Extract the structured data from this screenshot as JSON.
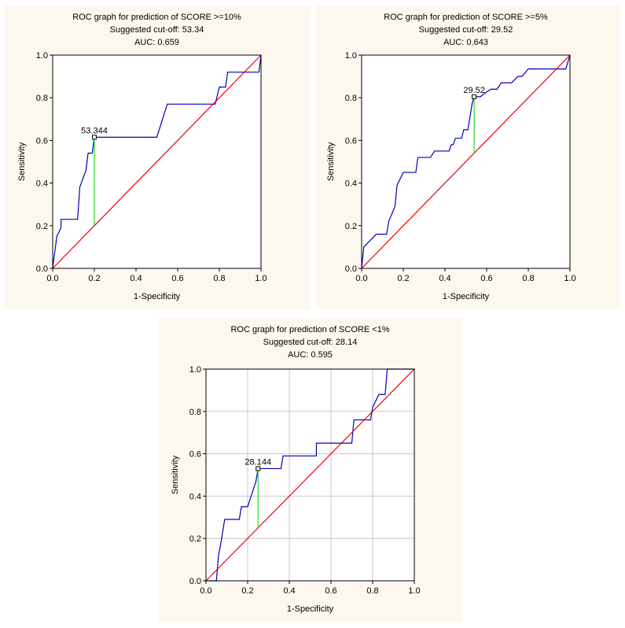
{
  "chart_data": [
    {
      "type": "line",
      "title": "ROC graph for prediction of SCORE >=10%",
      "subtitle_cutoff": "Suggested cut-off: 53.34",
      "subtitle_auc": "AUC: 0.659",
      "xlabel": "1-Specificity",
      "ylabel": "Sensitivity",
      "xlim": [
        0,
        1
      ],
      "ylim": [
        0,
        1
      ],
      "xticks": [
        "0.0",
        "0.2",
        "0.4",
        "0.6",
        "0.8",
        "1.0"
      ],
      "yticks": [
        "0.0",
        "0.2",
        "0.4",
        "0.6",
        "0.8",
        "1.0"
      ],
      "grid": false,
      "cutoff_label": "53.344",
      "cutoff_point": [
        0.2,
        0.615
      ],
      "series": [
        {
          "name": "ROC curve",
          "color": "#0000bb",
          "points": [
            [
              0,
              0
            ],
            [
              0.02,
              0.15
            ],
            [
              0.04,
              0.19
            ],
            [
              0.04,
              0.23
            ],
            [
              0.12,
              0.23
            ],
            [
              0.13,
              0.38
            ],
            [
              0.16,
              0.46
            ],
            [
              0.17,
              0.54
            ],
            [
              0.19,
              0.54
            ],
            [
              0.2,
              0.615
            ],
            [
              0.5,
              0.615
            ],
            [
              0.55,
              0.77
            ],
            [
              0.78,
              0.77
            ],
            [
              0.8,
              0.85
            ],
            [
              0.83,
              0.85
            ],
            [
              0.84,
              0.92
            ],
            [
              0.99,
              0.92
            ],
            [
              1,
              1
            ]
          ]
        },
        {
          "name": "Reference line",
          "color": "#ee0000",
          "points": [
            [
              0,
              0
            ],
            [
              1,
              1
            ]
          ]
        },
        {
          "name": "Cut-off marker",
          "color": "#22dd22",
          "points": [
            [
              0.2,
              0.2
            ],
            [
              0.2,
              0.615
            ]
          ]
        }
      ]
    },
    {
      "type": "line",
      "title": "ROC graph for prediction of SCORE >=5%",
      "subtitle_cutoff": "Suggested cut-off: 29.52",
      "subtitle_auc": "AUC: 0.643",
      "xlabel": "1-Specificity",
      "ylabel": "Sensitivity",
      "xlim": [
        0,
        1
      ],
      "ylim": [
        0,
        1
      ],
      "xticks": [
        "0.0",
        "0.2",
        "0.4",
        "0.6",
        "0.8",
        "1.0"
      ],
      "yticks": [
        "0.0",
        "0.2",
        "0.4",
        "0.6",
        "0.8",
        "1.0"
      ],
      "grid": false,
      "cutoff_label": "29.52",
      "cutoff_point": [
        0.54,
        0.805
      ],
      "series": [
        {
          "name": "ROC curve",
          "color": "#0000bb",
          "points": [
            [
              0,
              0
            ],
            [
              0.01,
              0.1
            ],
            [
              0.07,
              0.16
            ],
            [
              0.12,
              0.16
            ],
            [
              0.13,
              0.22
            ],
            [
              0.16,
              0.29
            ],
            [
              0.17,
              0.39
            ],
            [
              0.2,
              0.45
            ],
            [
              0.26,
              0.45
            ],
            [
              0.27,
              0.52
            ],
            [
              0.33,
              0.52
            ],
            [
              0.35,
              0.55
            ],
            [
              0.42,
              0.55
            ],
            [
              0.43,
              0.58
            ],
            [
              0.44,
              0.58
            ],
            [
              0.45,
              0.61
            ],
            [
              0.48,
              0.61
            ],
            [
              0.49,
              0.65
            ],
            [
              0.51,
              0.65
            ],
            [
              0.52,
              0.71
            ],
            [
              0.53,
              0.77
            ],
            [
              0.54,
              0.805
            ],
            [
              0.57,
              0.805
            ],
            [
              0.59,
              0.82
            ],
            [
              0.62,
              0.84
            ],
            [
              0.65,
              0.84
            ],
            [
              0.67,
              0.87
            ],
            [
              0.72,
              0.87
            ],
            [
              0.75,
              0.9
            ],
            [
              0.77,
              0.9
            ],
            [
              0.8,
              0.935
            ],
            [
              0.98,
              0.935
            ],
            [
              1,
              1
            ]
          ]
        },
        {
          "name": "Reference line",
          "color": "#ee0000",
          "points": [
            [
              0,
              0
            ],
            [
              1,
              1
            ]
          ]
        },
        {
          "name": "Cut-off marker",
          "color": "#22dd22",
          "points": [
            [
              0.54,
              0.54
            ],
            [
              0.54,
              0.805
            ]
          ]
        }
      ]
    },
    {
      "type": "line",
      "title": "ROC graph for prediction of SCORE <1%",
      "subtitle_cutoff": "Suggested cut-off: 28.14",
      "subtitle_auc": "AUC: 0.595",
      "xlabel": "1-Specificity",
      "ylabel": "Sensitivity",
      "xlim": [
        0,
        1
      ],
      "ylim": [
        0,
        1
      ],
      "xticks": [
        "0.0",
        "0.2",
        "0.4",
        "0.6",
        "0.8",
        "1.0"
      ],
      "yticks": [
        "0.0",
        "0.2",
        "0.4",
        "0.6",
        "0.8",
        "1.0"
      ],
      "grid": true,
      "cutoff_label": "28.144",
      "cutoff_point": [
        0.25,
        0.53
      ],
      "series": [
        {
          "name": "ROC curve",
          "color": "#0000bb",
          "points": [
            [
              0,
              0
            ],
            [
              0.05,
              0
            ],
            [
              0.06,
              0.12
            ],
            [
              0.07,
              0.17
            ],
            [
              0.09,
              0.29
            ],
            [
              0.16,
              0.29
            ],
            [
              0.17,
              0.35
            ],
            [
              0.2,
              0.35
            ],
            [
              0.22,
              0.41
            ],
            [
              0.24,
              0.47
            ],
            [
              0.25,
              0.53
            ],
            [
              0.36,
              0.53
            ],
            [
              0.37,
              0.59
            ],
            [
              0.53,
              0.59
            ],
            [
              0.53,
              0.65
            ],
            [
              0.7,
              0.65
            ],
            [
              0.71,
              0.76
            ],
            [
              0.79,
              0.76
            ],
            [
              0.8,
              0.82
            ],
            [
              0.83,
              0.88
            ],
            [
              0.86,
              0.88
            ],
            [
              0.87,
              1
            ],
            [
              1,
              1
            ]
          ]
        },
        {
          "name": "Reference line",
          "color": "#ee0000",
          "points": [
            [
              0,
              0
            ],
            [
              1,
              1
            ]
          ]
        },
        {
          "name": "Cut-off marker",
          "color": "#22dd22",
          "points": [
            [
              0.25,
              0.25
            ],
            [
              0.25,
              0.53
            ]
          ]
        }
      ]
    }
  ]
}
